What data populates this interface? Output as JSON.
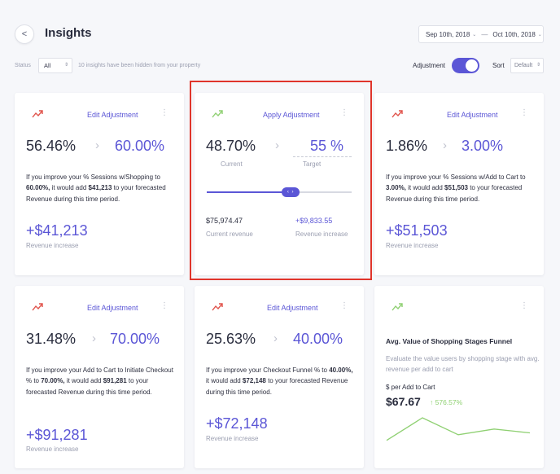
{
  "header": {
    "back_label": "<",
    "title": "Insights",
    "date_start": "Sep 10th, 2018",
    "date_separator": "—",
    "date_end": "Oct 10th, 2018",
    "date_chevron": "⌄"
  },
  "filters": {
    "status_label": "Status",
    "status_value": "All",
    "hidden_note": "10 insights have been hidden from your property",
    "adjustment_label": "Adjustment",
    "adjustment_on": true,
    "sort_label": "Sort",
    "sort_value": "Default"
  },
  "colors": {
    "accent": "#5b56d6",
    "trend_down": "#e0524a",
    "trend_up": "#8fd072",
    "highlight": "#e0352b"
  },
  "cards": [
    {
      "action": "Edit Adjustment",
      "from": "56.46%",
      "to": "60.00%",
      "desc_pre": "If you improve your % Sessions w/Shopping to ",
      "desc_pct": "60.00%,",
      "desc_mid": " it would add ",
      "desc_amt": "$41,213",
      "desc_post": " to your forecasted Revenue during this time period.",
      "revenue": "+$41,213",
      "revenue_label": "Revenue increase"
    },
    {
      "action": "Apply Adjustment",
      "current": "48.70%",
      "current_label": "Current",
      "target": "55 %",
      "target_label": "Target",
      "slider_fraction": 0.58,
      "current_revenue": "$75,974.47",
      "current_revenue_label": "Current revenue",
      "increase_revenue": "+$9,833.55",
      "increase_revenue_label": "Revenue increase"
    },
    {
      "action": "Edit Adjustment",
      "from": "1.86%",
      "to": "3.00%",
      "desc_pre": "If you improve your % Sessions w/Add to Cart to ",
      "desc_pct": "3.00%,",
      "desc_mid": " it would add ",
      "desc_amt": "$51,503",
      "desc_post": " to your forecasted Revenue during this time period.",
      "revenue": "+$51,503",
      "revenue_label": "Revenue increase"
    },
    {
      "action": "Edit Adjustment",
      "from": "31.48%",
      "to": "70.00%",
      "desc_pre": "If you improve your Add to Cart to Initiate Checkout % to ",
      "desc_pct": "70.00%,",
      "desc_mid": " it would add ",
      "desc_amt": "$91,281",
      "desc_post": " to your forecasted Revenue during this time period.",
      "revenue": "+$91,281",
      "revenue_label": "Revenue increase"
    },
    {
      "action": "Edit Adjustment",
      "from": "25.63%",
      "to": "40.00%",
      "desc_pre": "If you improve your Checkout Funnel % to ",
      "desc_pct": "40.00%,",
      "desc_mid": " it would add ",
      "desc_amt": "$72,148",
      "desc_post": " to your forecasted Revenue during this time period.",
      "revenue": "+$72,148",
      "revenue_label": "Revenue increase"
    },
    {
      "title": "Avg. Value of Shopping Stages Funnel",
      "desc": "Evaluate the value users by shopping stage with avg. revenue per add to cart",
      "metric_label": "$ per Add to Cart",
      "metric_value": "$67.67",
      "change_arrow": "↑",
      "change": "576.57%",
      "sparkline": [
        1,
        13,
        4,
        7,
        5
      ]
    }
  ],
  "icons": {
    "trend_down": "trend-down-icon",
    "trend_up": "trend-up-icon",
    "kebab": "⋮",
    "arrow_right": "›",
    "slider_glyph": "‹ ›",
    "updown": "⇕"
  }
}
